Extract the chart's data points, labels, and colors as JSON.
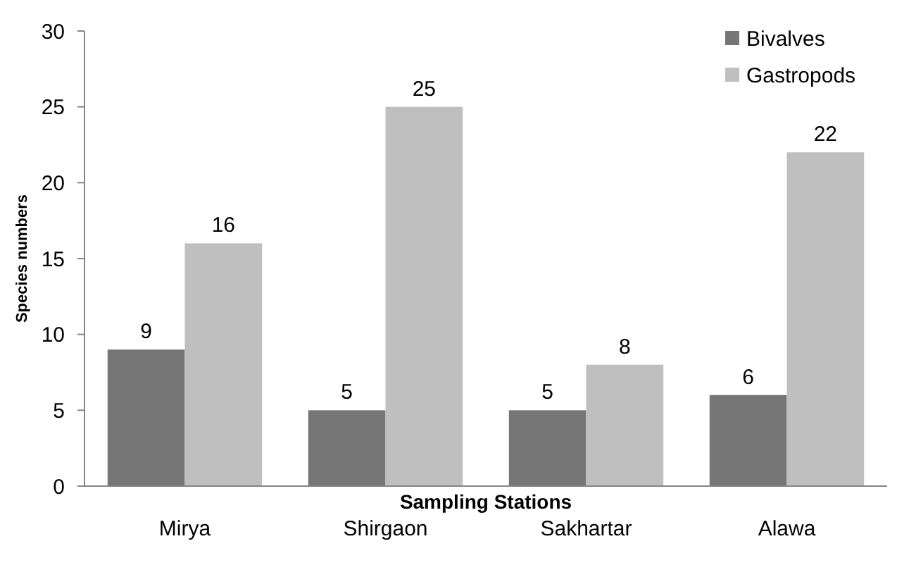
{
  "chart_data": {
    "type": "bar",
    "xlabel": "Sampling Stations",
    "ylabel": "Species numbers",
    "categories": [
      "Mirya",
      "Shirgaon",
      "Sakhartar",
      "Alawa"
    ],
    "series": [
      {
        "name": "Bivalves",
        "color": "#767676",
        "values": [
          9,
          5,
          5,
          6
        ]
      },
      {
        "name": "Gastropods",
        "color": "#bfbfbf",
        "values": [
          16,
          25,
          8,
          22
        ]
      }
    ],
    "ylim": [
      0,
      30
    ],
    "yticks": [
      0,
      5,
      10,
      15,
      20,
      25,
      30
    ],
    "grid": false,
    "legend": "top right",
    "data_labels": true
  }
}
